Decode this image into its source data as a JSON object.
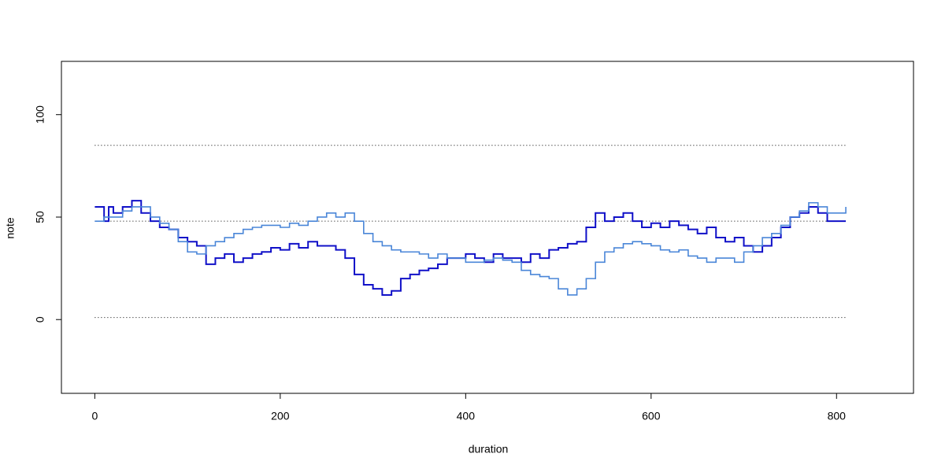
{
  "chart_data": {
    "type": "step",
    "x_label": "duration",
    "y_label": "note",
    "xlim": [
      -36,
      883
    ],
    "ylim": [
      -36,
      126
    ],
    "xticks": [
      0,
      200,
      400,
      600,
      800
    ],
    "yticks": [
      0,
      50,
      100
    ],
    "hlines": [
      1,
      48,
      85
    ],
    "x": [
      0,
      10,
      15,
      20,
      30,
      40,
      50,
      60,
      70,
      80,
      90,
      100,
      110,
      120,
      130,
      140,
      150,
      160,
      170,
      180,
      190,
      200,
      210,
      220,
      230,
      240,
      250,
      260,
      270,
      280,
      290,
      300,
      310,
      320,
      330,
      340,
      350,
      360,
      370,
      380,
      390,
      400,
      410,
      420,
      430,
      440,
      450,
      460,
      470,
      480,
      490,
      500,
      510,
      520,
      530,
      540,
      550,
      560,
      570,
      580,
      590,
      600,
      610,
      620,
      630,
      640,
      650,
      660,
      670,
      680,
      690,
      700,
      710,
      720,
      730,
      740,
      750,
      760,
      770,
      780,
      790,
      800,
      810
    ],
    "series": [
      {
        "color": "#1010c8",
        "values": [
          55,
          48,
          55,
          52,
          55,
          58,
          52,
          48,
          45,
          44,
          40,
          38,
          36,
          27,
          30,
          32,
          28,
          30,
          32,
          33,
          35,
          34,
          37,
          35,
          38,
          36,
          36,
          34,
          30,
          22,
          17,
          15,
          12,
          14,
          20,
          22,
          24,
          25,
          27,
          30,
          30,
          32,
          30,
          28,
          32,
          30,
          30,
          28,
          32,
          30,
          34,
          35,
          37,
          38,
          45,
          52,
          48,
          50,
          52,
          48,
          45,
          47,
          45,
          48,
          46,
          44,
          42,
          45,
          40,
          38,
          40,
          36,
          33,
          36,
          40,
          45,
          50,
          52,
          55,
          52,
          48,
          48,
          48
        ]
      },
      {
        "color": "#4a86d8",
        "values": [
          48,
          50,
          50,
          50,
          53,
          55,
          55,
          50,
          47,
          44,
          38,
          33,
          32,
          36,
          38,
          40,
          42,
          44,
          45,
          46,
          46,
          45,
          47,
          46,
          48,
          50,
          52,
          50,
          52,
          48,
          42,
          38,
          36,
          34,
          33,
          33,
          32,
          30,
          32,
          30,
          30,
          28,
          28,
          29,
          30,
          29,
          28,
          24,
          22,
          21,
          20,
          15,
          12,
          15,
          20,
          28,
          33,
          35,
          37,
          38,
          37,
          36,
          34,
          33,
          34,
          31,
          30,
          28,
          30,
          30,
          28,
          33,
          36,
          40,
          42,
          46,
          50,
          53,
          57,
          55,
          52,
          52,
          55
        ]
      }
    ]
  }
}
